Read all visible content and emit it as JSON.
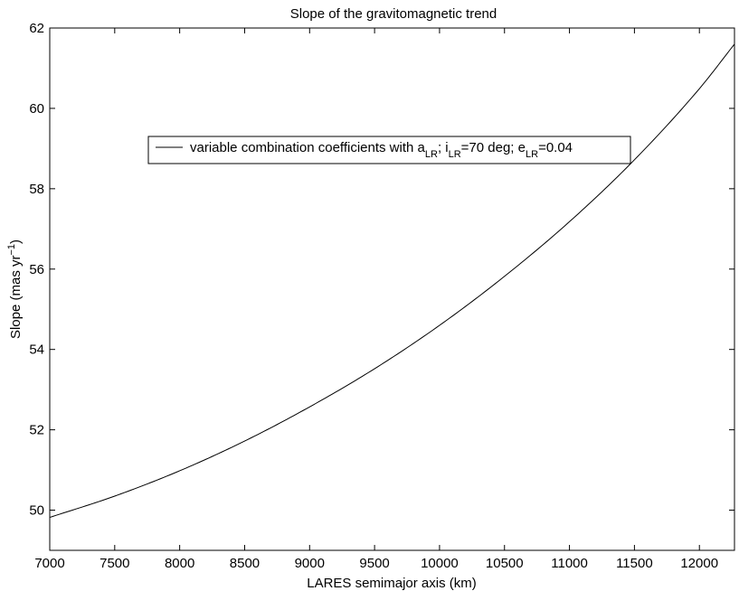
{
  "chart_data": {
    "type": "line",
    "title": "Slope of the gravitomagnetic trend",
    "xlabel": "LARES semimajor axis (km)",
    "ylabel": {
      "main": "Slope (mas yr",
      "exp": "−1",
      "close": ")"
    },
    "xlim": [
      7000,
      12270
    ],
    "ylim": [
      49,
      62
    ],
    "xticks": [
      7000,
      7500,
      8000,
      8500,
      9000,
      9500,
      10000,
      10500,
      11000,
      11500,
      12000
    ],
    "yticks": [
      50,
      52,
      54,
      56,
      58,
      60,
      62
    ],
    "grid": false,
    "legend_position": "upper-center",
    "series": [
      {
        "name": "variable combination coefficients with a_LR; i_LR=70 deg; e_LR=0.04",
        "x": [
          7000,
          7500,
          8000,
          8500,
          9000,
          9500,
          10000,
          10500,
          11000,
          11500,
          12000,
          12270
        ],
        "y": [
          49.82,
          50.35,
          50.98,
          51.72,
          52.57,
          53.52,
          54.6,
          55.82,
          57.18,
          58.72,
          60.49,
          61.6
        ]
      }
    ],
    "legend": {
      "prefix": "variable combination coefficients with a",
      "sub1": "LR",
      "part2": "; i",
      "sub2": "LR",
      "part3": "=70 deg; e",
      "sub3": "LR",
      "part4": "=0.04"
    }
  }
}
